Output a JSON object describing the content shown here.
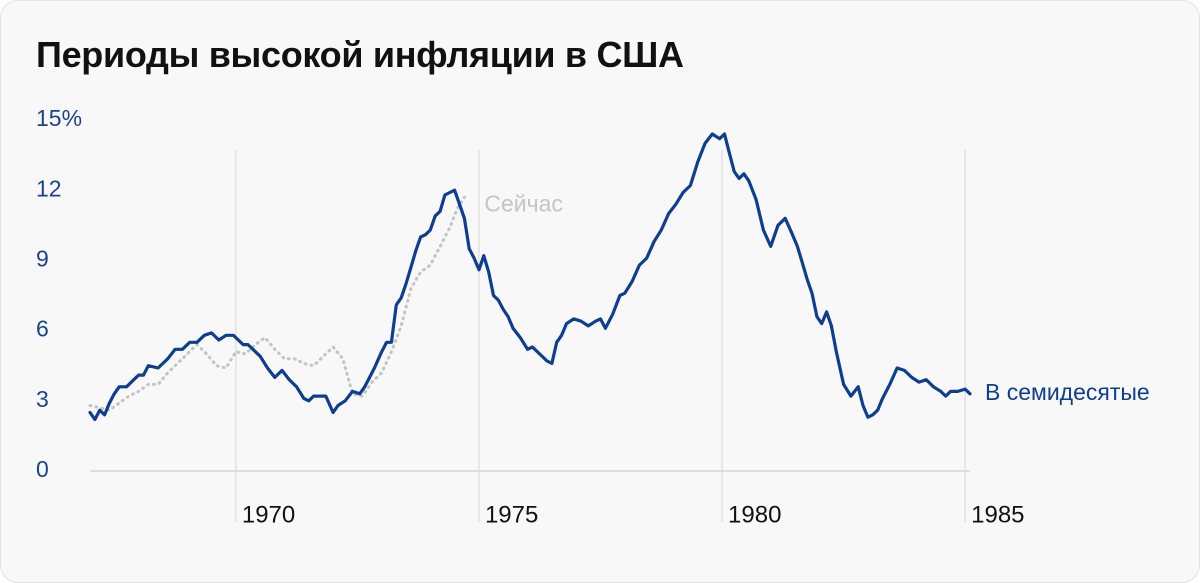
{
  "title": "Периоды высокой инфляции в США",
  "colors": {
    "seventies": "#0e3e8e",
    "now": "#c4c4c4",
    "text": "#111111",
    "axis_text": "#19448c",
    "grid": "#d6d6d6"
  },
  "chart_data": {
    "type": "line",
    "title": "Периоды высокой инфляции в США",
    "xlabel": "",
    "ylabel": "",
    "xlim": [
      1967.0,
      1985.1
    ],
    "ylim": [
      0,
      15
    ],
    "y_ticks": [
      0,
      3,
      6,
      9,
      12,
      15
    ],
    "y_tick_labels": [
      "0",
      "3",
      "6",
      "9",
      "12",
      "15%"
    ],
    "x_ticks": [
      1970,
      1975,
      1980,
      1985
    ],
    "x_tick_labels": [
      "1970",
      "1975",
      "1980",
      "1985"
    ],
    "grid": false,
    "series": [
      {
        "name": "В семидесятые",
        "style": "solid",
        "color": "#0e3e8e",
        "x": [
          1967.0,
          1967.1,
          1967.2,
          1967.3,
          1967.4,
          1967.5,
          1967.6,
          1967.75,
          1967.9,
          1968.0,
          1968.1,
          1968.2,
          1968.4,
          1968.6,
          1968.75,
          1968.9,
          1969.05,
          1969.2,
          1969.35,
          1969.5,
          1969.65,
          1969.8,
          1969.95,
          1970.05,
          1970.15,
          1970.25,
          1970.35,
          1970.5,
          1970.65,
          1970.8,
          1970.95,
          1971.1,
          1971.25,
          1971.4,
          1971.5,
          1971.6,
          1971.75,
          1971.85,
          1972.0,
          1972.1,
          1972.25,
          1972.4,
          1972.55,
          1972.65,
          1972.75,
          1972.85,
          1973.0,
          1973.1,
          1973.2,
          1973.3,
          1973.4,
          1973.5,
          1973.6,
          1973.7,
          1973.8,
          1973.9,
          1974.0,
          1974.1,
          1974.2,
          1974.3,
          1974.4,
          1974.5,
          1974.6,
          1974.7,
          1974.8,
          1974.9,
          1975.0,
          1975.1,
          1975.2,
          1975.3,
          1975.4,
          1975.5,
          1975.6,
          1975.7,
          1975.85,
          1976.0,
          1976.1,
          1976.25,
          1976.4,
          1976.5,
          1976.6,
          1976.7,
          1976.8,
          1976.95,
          1977.1,
          1977.25,
          1977.4,
          1977.5,
          1977.6,
          1977.75,
          1977.9,
          1978.0,
          1978.15,
          1978.3,
          1978.45,
          1978.6,
          1978.75,
          1978.9,
          1979.05,
          1979.2,
          1979.35,
          1979.5,
          1979.65,
          1979.8,
          1979.95,
          1980.05,
          1980.15,
          1980.25,
          1980.35,
          1980.45,
          1980.55,
          1980.7,
          1980.85,
          1981.0,
          1981.15,
          1981.3,
          1981.45,
          1981.55,
          1981.65,
          1981.75,
          1981.85,
          1981.95,
          1982.05,
          1982.15,
          1982.25,
          1982.35,
          1982.5,
          1982.65,
          1982.8,
          1982.9,
          1983.0,
          1983.1,
          1983.2,
          1983.3,
          1983.45,
          1983.6,
          1983.75,
          1983.9,
          1984.05,
          1984.2,
          1984.35,
          1984.5,
          1984.6,
          1984.7,
          1984.85,
          1985.0,
          1985.1
        ],
        "y": [
          2.5,
          2.2,
          2.6,
          2.4,
          2.9,
          3.3,
          3.6,
          3.6,
          3.9,
          4.1,
          4.1,
          4.5,
          4.4,
          4.8,
          5.2,
          5.2,
          5.5,
          5.5,
          5.8,
          5.9,
          5.6,
          5.8,
          5.8,
          5.6,
          5.4,
          5.4,
          5.2,
          4.9,
          4.4,
          4.0,
          4.3,
          3.9,
          3.6,
          3.1,
          3.0,
          3.2,
          3.2,
          3.2,
          2.5,
          2.8,
          3.0,
          3.4,
          3.3,
          3.6,
          4.0,
          4.4,
          5.1,
          5.5,
          5.5,
          7.1,
          7.4,
          8.0,
          8.7,
          9.4,
          10.0,
          10.1,
          10.3,
          10.9,
          11.1,
          11.8,
          11.9,
          12.0,
          11.4,
          10.8,
          9.5,
          9.1,
          8.6,
          9.2,
          8.5,
          7.5,
          7.3,
          6.9,
          6.6,
          6.1,
          5.7,
          5.2,
          5.3,
          5.0,
          4.7,
          4.6,
          5.5,
          5.8,
          6.3,
          6.5,
          6.4,
          6.2,
          6.4,
          6.5,
          6.1,
          6.7,
          7.5,
          7.6,
          8.1,
          8.8,
          9.1,
          9.8,
          10.3,
          11.0,
          11.4,
          11.9,
          12.2,
          13.2,
          14.0,
          14.4,
          14.2,
          14.4,
          13.6,
          12.8,
          12.5,
          12.7,
          12.4,
          11.6,
          10.3,
          9.6,
          10.5,
          10.8,
          10.1,
          9.6,
          8.9,
          8.2,
          7.6,
          6.6,
          6.3,
          6.8,
          6.2,
          5.1,
          3.7,
          3.2,
          3.6,
          2.8,
          2.3,
          2.4,
          2.6,
          3.1,
          3.7,
          4.4,
          4.3,
          4.0,
          3.8,
          3.9,
          3.6,
          3.4,
          3.2,
          3.4,
          3.4,
          3.5,
          3.3
        ],
        "end_label": "В семидесятые"
      },
      {
        "name": "Сейчас",
        "style": "dotted",
        "color": "#c4c4c4",
        "x": [
          1967.0,
          1967.2,
          1967.4,
          1967.6,
          1967.8,
          1968.0,
          1968.2,
          1968.4,
          1968.6,
          1968.8,
          1969.0,
          1969.2,
          1969.4,
          1969.6,
          1969.8,
          1970.0,
          1970.2,
          1970.4,
          1970.6,
          1970.8,
          1971.0,
          1971.2,
          1971.4,
          1971.6,
          1971.8,
          1972.0,
          1972.2,
          1972.4,
          1972.6,
          1972.8,
          1973.0,
          1973.2,
          1973.4,
          1973.6,
          1973.8,
          1974.0,
          1974.2,
          1974.4,
          1974.55,
          1974.7
        ],
        "y": [
          2.8,
          2.7,
          2.6,
          2.9,
          3.2,
          3.4,
          3.7,
          3.7,
          4.2,
          4.6,
          5.0,
          5.4,
          5.0,
          4.5,
          4.4,
          5.1,
          5.0,
          5.4,
          5.7,
          5.2,
          4.8,
          4.8,
          4.6,
          4.5,
          4.9,
          5.3,
          4.8,
          3.3,
          3.2,
          3.8,
          4.2,
          5.1,
          6.2,
          7.8,
          8.5,
          8.8,
          9.6,
          10.4,
          11.2,
          11.7
        ],
        "end_label": "Сейчас"
      }
    ]
  }
}
